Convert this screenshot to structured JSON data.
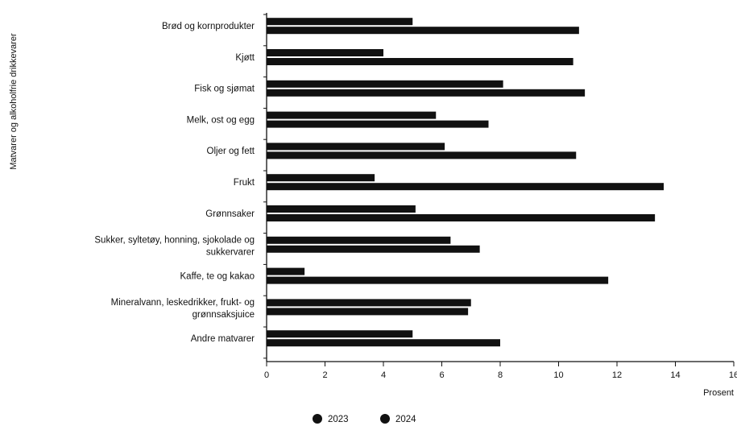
{
  "chart_data": {
    "type": "bar",
    "orientation": "horizontal",
    "ylabel": "Matvarer og alkoholfrie drikkevarer",
    "xlabel": "Prosent",
    "xlim": [
      0,
      16
    ],
    "xticks": [
      "0",
      "2",
      "4",
      "6",
      "8",
      "10",
      "12",
      "14",
      "16"
    ],
    "grid": false,
    "legend_position": "bottom",
    "categories": [
      [
        "Brød og kornprodukter"
      ],
      [
        "Kjøtt"
      ],
      [
        "Fisk og sjømat"
      ],
      [
        "Melk, ost og egg"
      ],
      [
        "Oljer og fett"
      ],
      [
        "Frukt"
      ],
      [
        "Grønnsaker"
      ],
      [
        "Sukker, syltetøy, honning, sjokolade og",
        "sukkervarer"
      ],
      [
        "Kaffe, te og kakao"
      ],
      [
        "Mineralvann, leskedrikker, frukt- og",
        "grønnsaksjuice"
      ],
      [
        "Andre matvarer"
      ]
    ],
    "series": [
      {
        "name": "2023",
        "color": "#111111",
        "values": [
          5.0,
          4.0,
          8.1,
          5.8,
          6.1,
          3.7,
          5.1,
          6.3,
          1.3,
          7.0,
          5.0
        ]
      },
      {
        "name": "2024",
        "color": "#111111",
        "values": [
          10.7,
          10.5,
          10.9,
          7.6,
          10.6,
          13.6,
          13.3,
          7.3,
          11.7,
          6.9,
          8.0
        ]
      }
    ]
  }
}
